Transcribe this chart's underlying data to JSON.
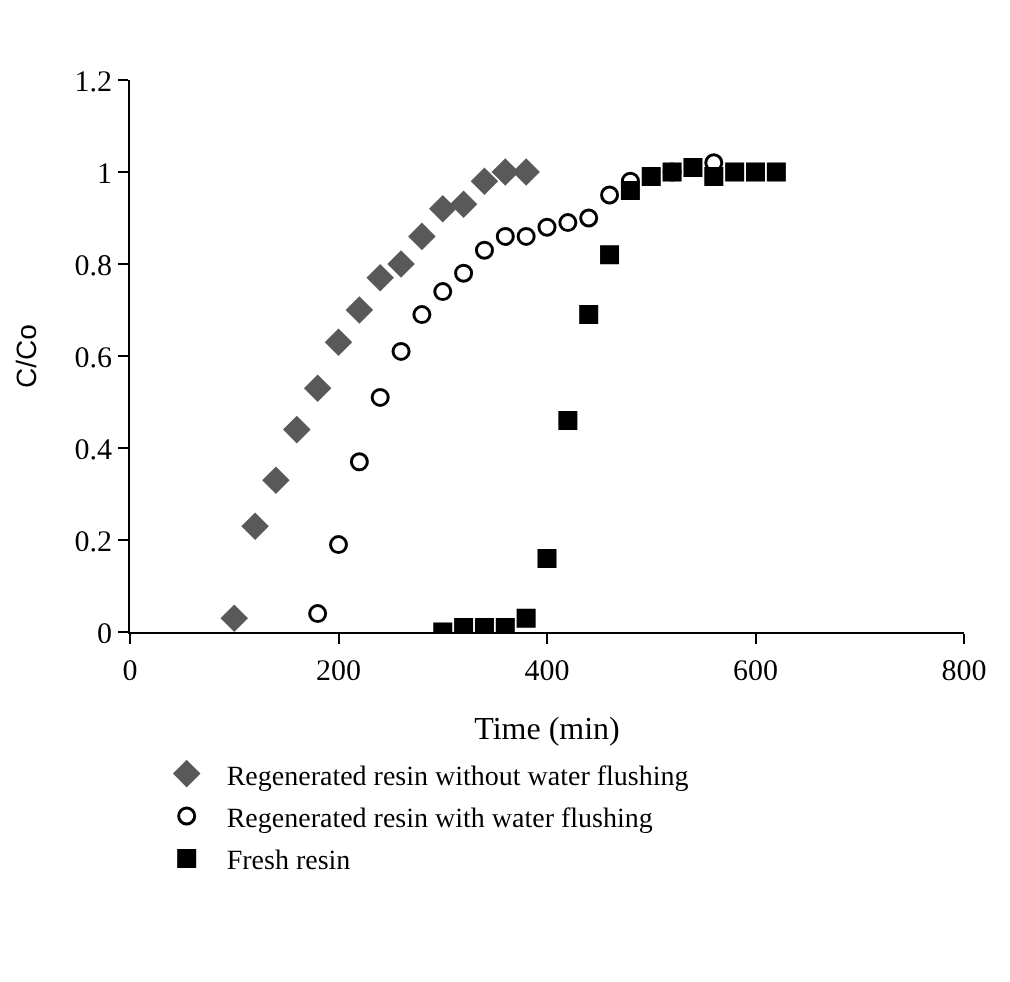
{
  "chart_data": {
    "type": "scatter",
    "xlabel": "Time (min)",
    "ylabel": "C/Co",
    "xlim": [
      0,
      800
    ],
    "xticks": [
      0,
      200,
      400,
      600,
      800
    ],
    "ylim": [
      0,
      1.2
    ],
    "yticks": [
      0,
      0.2,
      0.4,
      0.6,
      0.8,
      1,
      1.2
    ],
    "legend": "bottom",
    "series": [
      {
        "name": "Regenerated resin without water flushing",
        "color": "#595959",
        "marker": "diamond",
        "x": [
          100,
          120,
          140,
          160,
          180,
          200,
          220,
          240,
          260,
          280,
          300,
          320,
          340,
          360,
          380
        ],
        "values": [
          0.03,
          0.23,
          0.33,
          0.44,
          0.53,
          0.63,
          0.7,
          0.77,
          0.8,
          0.86,
          0.92,
          0.93,
          0.98,
          1.0,
          1.0
        ]
      },
      {
        "name": "Regenerated resin with water flushing",
        "color": "#000000",
        "marker": "circle-open",
        "x": [
          180,
          200,
          220,
          240,
          260,
          280,
          300,
          320,
          340,
          360,
          380,
          400,
          420,
          440,
          460,
          480,
          500,
          520,
          540,
          560
        ],
        "values": [
          0.04,
          0.19,
          0.37,
          0.51,
          0.61,
          0.69,
          0.74,
          0.78,
          0.83,
          0.86,
          0.86,
          0.88,
          0.89,
          0.9,
          0.95,
          0.98,
          null,
          1.0,
          null,
          1.02
        ]
      },
      {
        "name": "Fresh resin",
        "color": "#000000",
        "marker": "square",
        "x": [
          300,
          320,
          340,
          360,
          380,
          400,
          420,
          440,
          460,
          480,
          500,
          520,
          540,
          560,
          580,
          600,
          620
        ],
        "values": [
          0.0,
          0.01,
          0.01,
          0.01,
          0.03,
          0.16,
          0.46,
          0.69,
          0.82,
          0.96,
          0.99,
          1.0,
          1.01,
          0.99,
          1.0,
          1.0,
          1.0
        ]
      }
    ]
  }
}
